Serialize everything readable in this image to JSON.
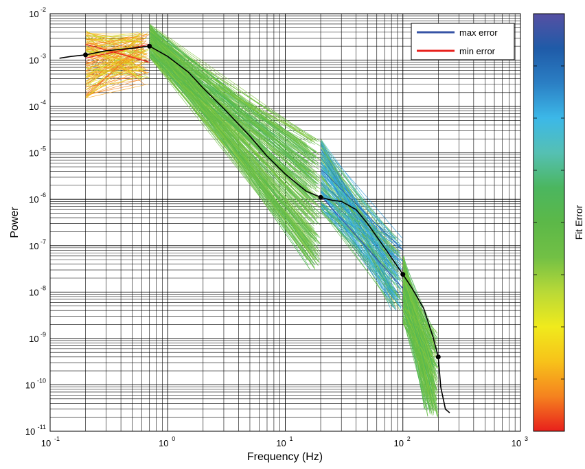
{
  "chart_data": {
    "type": "line",
    "xlabel": "Frequency (Hz)",
    "ylabel": "Power",
    "x_scale": "log",
    "y_scale": "log",
    "xlim": [
      0.1,
      1000
    ],
    "ylim": [
      1e-11,
      0.01
    ],
    "grid": true,
    "x_ticks": [
      {
        "base": "10",
        "exp": "-1",
        "value": 0.1
      },
      {
        "base": "10",
        "exp": "0",
        "value": 1
      },
      {
        "base": "10",
        "exp": "1",
        "value": 10
      },
      {
        "base": "10",
        "exp": "2",
        "value": 100
      },
      {
        "base": "10",
        "exp": "3",
        "value": 1000
      }
    ],
    "y_ticks": [
      {
        "base": "10",
        "exp": "-11",
        "value": 1e-11
      },
      {
        "base": "10",
        "exp": "-10",
        "value": 1e-10
      },
      {
        "base": "10",
        "exp": "-9",
        "value": 1e-09
      },
      {
        "base": "10",
        "exp": "-8",
        "value": 1e-08
      },
      {
        "base": "10",
        "exp": "-7",
        "value": 1e-07
      },
      {
        "base": "10",
        "exp": "-6",
        "value": 1e-06
      },
      {
        "base": "10",
        "exp": "-5",
        "value": 1e-05
      },
      {
        "base": "10",
        "exp": "-4",
        "value": 0.0001
      },
      {
        "base": "10",
        "exp": "-3",
        "value": 0.001
      },
      {
        "base": "10",
        "exp": "-2",
        "value": 0.01
      }
    ],
    "legend": {
      "position": "top-right",
      "entries": [
        {
          "label": "max error",
          "color": "#3653a5"
        },
        {
          "label": "min error",
          "color": "#e8201c"
        }
      ]
    },
    "colorbar": {
      "label": "Fit Error",
      "colors": [
        "#e8201c",
        "#f5821f",
        "#f7c21a",
        "#f0ea1c",
        "#b9d937",
        "#72c045",
        "#5cb848",
        "#4bb65f",
        "#55c0b3",
        "#3cb8e8",
        "#2b7fc4",
        "#1f5ba8",
        "#5650a3"
      ]
    },
    "median_spectrum": {
      "color": "#000000",
      "x": [
        0.12,
        0.15,
        0.2,
        0.3,
        0.5,
        0.7,
        1.0,
        1.5,
        2,
        3,
        5,
        7,
        10,
        15,
        20,
        25,
        30,
        40,
        50,
        70,
        100,
        120,
        150,
        180,
        200,
        210,
        230,
        250
      ],
      "y": [
        0.0011,
        0.0012,
        0.0013,
        0.0016,
        0.0018,
        0.002,
        0.0012,
        0.00055,
        0.00025,
        9e-05,
        2.3e-05,
        8.5e-06,
        3.5e-06,
        1.5e-06,
        1.1e-06,
        9.5e-07,
        9e-07,
        6e-07,
        3e-07,
        9e-08,
        2.4e-08,
        1.2e-08,
        4.5e-09,
        1.1e-09,
        4e-10,
        9e-11,
        3e-11,
        2.5e-11
      ]
    },
    "breakpoints": {
      "x": [
        0.2,
        0.7,
        20,
        100,
        200
      ],
      "y": [
        0.0013,
        0.002,
        1.1e-06,
        2.4e-08,
        4e-10
      ]
    },
    "fit_segments": [
      {
        "x_range": [
          0.2,
          0.7
        ],
        "y_at_start": [
          0.00015,
          0.0045
        ],
        "y_at_end": [
          0.0003,
          0.004
        ],
        "error": "low"
      },
      {
        "x_range": [
          0.7,
          20
        ],
        "y_at_start": [
          0.0011,
          0.006
        ],
        "y_at_end": [
          3e-08,
          2e-05
        ],
        "error": "mid"
      },
      {
        "x_range": [
          20,
          100
        ],
        "y_at_start": [
          5e-07,
          2e-05
        ],
        "y_at_end": [
          4e-09,
          1.5e-07
        ],
        "error": "high"
      },
      {
        "x_range": [
          100,
          200
        ],
        "y_at_start": [
          2e-09,
          6e-08
        ],
        "y_at_end": [
          2e-11,
          1.5e-09
        ],
        "error": "mid"
      }
    ]
  }
}
